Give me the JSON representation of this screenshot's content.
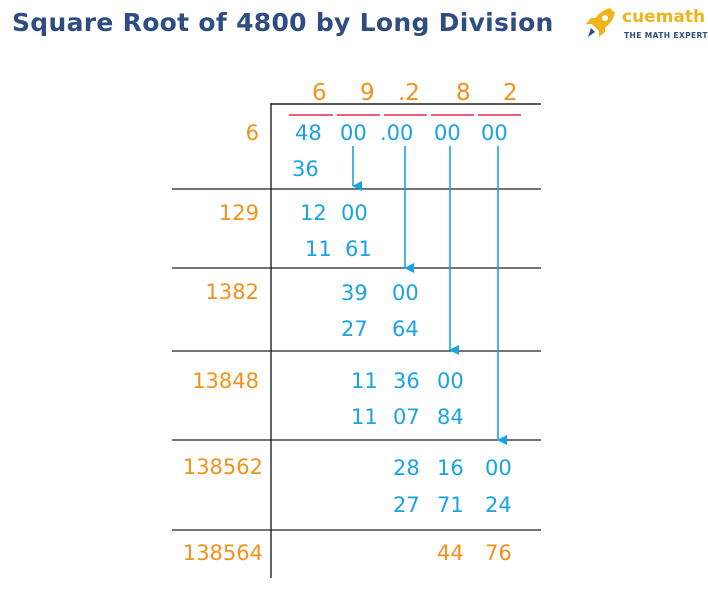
{
  "title": "Square Root of 4800 by Long Division",
  "logo": {
    "brand": "cuemath",
    "tagline": "THE MATH EXPERT"
  },
  "quotient": [
    "6",
    "9",
    ".2",
    "8",
    "2"
  ],
  "dividend": {
    "first": "48",
    "pairs": [
      "00",
      ".00",
      "00",
      "00"
    ]
  },
  "divisors": [
    "6",
    "129",
    "1382",
    "13848",
    "138562",
    "138564"
  ],
  "steps": [
    {
      "subtract": "36"
    },
    {
      "value": [
        "12",
        "00"
      ],
      "subtract": [
        "11",
        "61"
      ]
    },
    {
      "value": [
        "39",
        "00"
      ],
      "subtract": [
        "27",
        "64"
      ]
    },
    {
      "value": [
        "11",
        "36",
        "00"
      ],
      "subtract": [
        "11",
        "07",
        "84"
      ]
    },
    {
      "value": [
        "28",
        "16",
        "00"
      ],
      "subtract": [
        "27",
        "71",
        "24"
      ]
    }
  ],
  "remainder": [
    "44",
    "76"
  ],
  "colors": {
    "title": "#2e4d82",
    "orange": "#f2911b",
    "blue": "#1aa2e6",
    "pink": "#e8607a",
    "line": "#222222"
  },
  "icons": [
    "rocket-icon",
    "arrow-down-icon"
  ]
}
